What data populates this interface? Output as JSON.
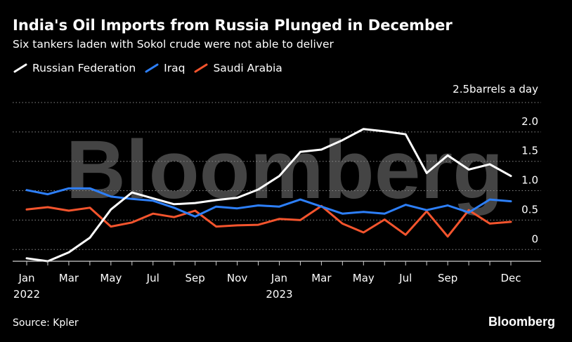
{
  "title": "India's Oil Imports from Russia Plunged in December",
  "subtitle": "Six tankers laden with Sokol crude were not able to deliver",
  "source": "Source: Kpler",
  "brand": "Bloomberg",
  "watermark": "Bloomberg",
  "chart_data": {
    "type": "line",
    "title": "India's Oil Imports from Russia Plunged in December",
    "subtitle": "Six tankers laden with Sokol crude were not able to deliver",
    "ylabel": "2.5barrels a day",
    "xlabel": "",
    "ylim": [
      -0.2,
      2.5
    ],
    "y_ticks": [
      0,
      0.5,
      1.0,
      1.5,
      2.0
    ],
    "y_tick_labels": [
      "0",
      "0.5",
      "1.0",
      "1.5",
      "2.0"
    ],
    "grid": true,
    "legend_position": "top-left",
    "x": [
      "Jan 2022",
      "Feb 2022",
      "Mar 2022",
      "Apr 2022",
      "May 2022",
      "Jun 2022",
      "Jul 2022",
      "Aug 2022",
      "Sep 2022",
      "Oct 2022",
      "Nov 2022",
      "Dec 2022",
      "Jan 2023",
      "Feb 2023",
      "Mar 2023",
      "Apr 2023",
      "May 2023",
      "Jun 2023",
      "Jul 2023",
      "Aug 2023",
      "Sep 2023",
      "Oct 2023",
      "Nov 2023",
      "Dec 2023"
    ],
    "x_ticks": [
      {
        "index": 0,
        "line1": "Jan",
        "line2": "2022"
      },
      {
        "index": 2,
        "line1": "Mar",
        "line2": ""
      },
      {
        "index": 4,
        "line1": "May",
        "line2": ""
      },
      {
        "index": 6,
        "line1": "Jul",
        "line2": ""
      },
      {
        "index": 8,
        "line1": "Sep",
        "line2": ""
      },
      {
        "index": 10,
        "line1": "Nov",
        "line2": ""
      },
      {
        "index": 12,
        "line1": "Jan",
        "line2": "2023"
      },
      {
        "index": 14,
        "line1": "Mar",
        "line2": ""
      },
      {
        "index": 16,
        "line1": "May",
        "line2": ""
      },
      {
        "index": 18,
        "line1": "Jul",
        "line2": ""
      },
      {
        "index": 20,
        "line1": "Sep",
        "line2": ""
      },
      {
        "index": 23,
        "line1": "Dec",
        "line2": ""
      }
    ],
    "series": [
      {
        "name": "Russian Federation",
        "color": "#ffffff",
        "values": [
          -0.15,
          -0.2,
          -0.05,
          0.2,
          0.68,
          0.97,
          0.87,
          0.77,
          0.79,
          0.84,
          0.88,
          1.02,
          1.25,
          1.66,
          1.7,
          1.86,
          2.05,
          2.01,
          1.96,
          1.3,
          1.6,
          1.36,
          1.45,
          1.25
        ]
      },
      {
        "name": "Iraq",
        "color": "#2d7ff9",
        "values": [
          1.01,
          0.94,
          1.04,
          1.04,
          0.9,
          0.86,
          0.83,
          0.71,
          0.56,
          0.73,
          0.7,
          0.75,
          0.73,
          0.85,
          0.73,
          0.61,
          0.64,
          0.61,
          0.76,
          0.67,
          0.75,
          0.63,
          0.85,
          0.82
        ]
      },
      {
        "name": "Saudi Arabia",
        "color": "#f4542d",
        "values": [
          0.68,
          0.72,
          0.66,
          0.71,
          0.39,
          0.46,
          0.61,
          0.55,
          0.66,
          0.39,
          0.41,
          0.42,
          0.52,
          0.5,
          0.74,
          0.44,
          0.29,
          0.51,
          0.25,
          0.65,
          0.22,
          0.67,
          0.44,
          0.47
        ]
      }
    ]
  }
}
